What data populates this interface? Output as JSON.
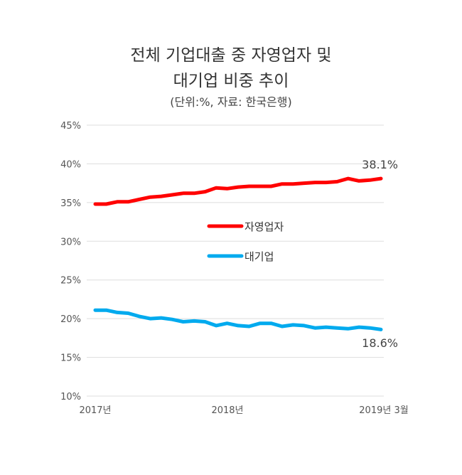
{
  "chart_data": {
    "type": "line",
    "title_line1": "전체 기업대출 중 자영업자 및",
    "title_line2": "대기업 비중 추이",
    "subtitle": "(단위:%, 자료: 한국은행)",
    "y_ticks": [
      "45%",
      "40%",
      "35%",
      "30%",
      "25%",
      "20%",
      "15%",
      "10%"
    ],
    "ylim": [
      10,
      45
    ],
    "x_tick_labels": [
      "2017년",
      "2018년",
      "2019년 3월"
    ],
    "series": [
      {
        "name": "자영업자",
        "color": "#ff0000",
        "values": [
          34.8,
          34.8,
          35.1,
          35.1,
          35.4,
          35.7,
          35.8,
          36.0,
          36.2,
          36.2,
          36.4,
          36.9,
          36.8,
          37.0,
          37.1,
          37.1,
          37.1,
          37.4,
          37.4,
          37.5,
          37.6,
          37.6,
          37.7,
          38.1,
          37.8,
          37.9,
          38.1
        ],
        "end_label": "38.1%"
      },
      {
        "name": "대기업",
        "color": "#00aaee",
        "values": [
          21.1,
          21.1,
          20.8,
          20.7,
          20.3,
          20.0,
          20.1,
          19.9,
          19.6,
          19.7,
          19.6,
          19.1,
          19.4,
          19.1,
          19.0,
          19.4,
          19.4,
          19.0,
          19.2,
          19.1,
          18.8,
          18.9,
          18.8,
          18.7,
          18.9,
          18.8,
          18.6
        ],
        "end_label": "18.6%"
      }
    ]
  }
}
